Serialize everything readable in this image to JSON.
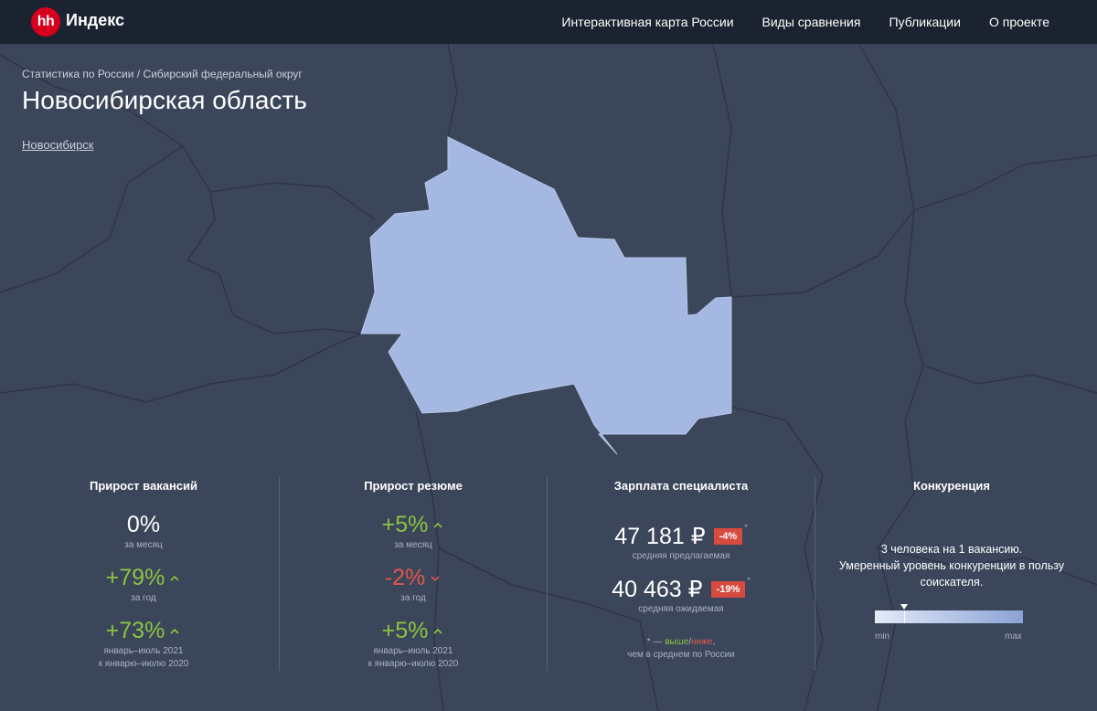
{
  "header": {
    "logo_mark": "hh",
    "logo_text": "Индекс",
    "nav": [
      "Интерактивная карта России",
      "Виды сравнения",
      "Публикации",
      "О проекте"
    ]
  },
  "breadcrumb": [
    "Статистика по России",
    "Сибирский федеральный округ"
  ],
  "breadcrumb_separator": " / ",
  "title": "Новосибирская область",
  "city_link": "Новосибирск",
  "vacancies": {
    "title": "Прирост вакансий",
    "metrics": [
      {
        "value": "0%",
        "caption": "за месяц",
        "trend": "none"
      },
      {
        "value": "+79%",
        "caption": "за год",
        "trend": "up"
      },
      {
        "value": "+73%",
        "caption": "январь–июль 2021",
        "caption2": "к январю–июлю 2020",
        "trend": "up"
      }
    ]
  },
  "resumes": {
    "title": "Прирост резюме",
    "metrics": [
      {
        "value": "+5%",
        "caption": "за месяц",
        "trend": "up"
      },
      {
        "value": "-2%",
        "caption": "за год",
        "trend": "down"
      },
      {
        "value": "+5%",
        "caption": "январь–июль 2021",
        "caption2": "к январю–июлю 2020",
        "trend": "up"
      }
    ]
  },
  "salary": {
    "title": "Зарплата специалиста",
    "offered": {
      "value": "47 181 ₽",
      "badge": "-4%",
      "asterisk": "*",
      "caption": "средняя предлагаемая"
    },
    "expected": {
      "value": "40 463 ₽",
      "badge": "-19%",
      "asterisk": "*",
      "caption": "средняя ожидаемая"
    },
    "note_prefix": "* — ",
    "note_higher": "выше",
    "note_slash": "/",
    "note_lower": "ниже",
    "note_suffix": ",",
    "note_line2": "чем в среднем по России"
  },
  "competition": {
    "title": "Конкуренция",
    "line1": "3 человека на 1 вакансию.",
    "line2": "Умеренный уровень конкуренции в пользу",
    "line3": "соискателя.",
    "scale_min": "min",
    "scale_max": "max",
    "level_fraction": 0.2
  },
  "colors": {
    "background": "#3b465b",
    "header": "#1b2230",
    "region": "#a4b8e2",
    "positive": "#8bc53f",
    "negative": "#e2574c",
    "badge": "#d64a3f",
    "brand": "#d6001c"
  }
}
